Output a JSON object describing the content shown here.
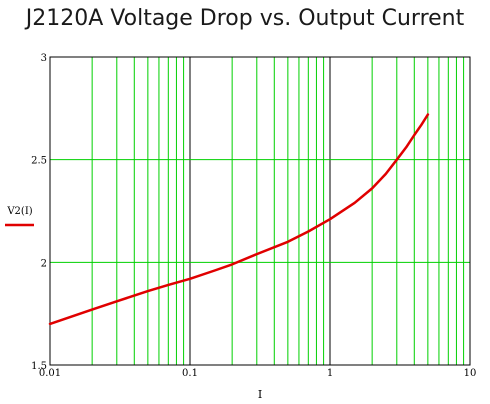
{
  "chart_data": {
    "type": "line",
    "title": "J2120A Voltage Drop vs. Output Current",
    "xlabel": "I",
    "ylabel": "V2(I)",
    "xscale": "log",
    "xlim": [
      0.01,
      10
    ],
    "ylim": [
      1.5,
      3
    ],
    "xticks": [
      "0.01",
      "0.1",
      "1",
      "10"
    ],
    "yticks": [
      "1.5",
      "2",
      "2.5",
      "3"
    ],
    "grid": true,
    "grid_color": "#00d000",
    "major_grid_color": "#000000",
    "legend": {
      "placement": "left",
      "label": "V2(I)"
    },
    "series": [
      {
        "name": "V2(I)",
        "color": "#e00000",
        "x": [
          0.01,
          0.02,
          0.03,
          0.05,
          0.07,
          0.1,
          0.15,
          0.2,
          0.3,
          0.5,
          0.7,
          1.0,
          1.5,
          2.0,
          2.5,
          3.0,
          3.5,
          4.0,
          4.5,
          5.0
        ],
        "y": [
          1.7,
          1.77,
          1.81,
          1.86,
          1.89,
          1.92,
          1.96,
          1.99,
          2.04,
          2.1,
          2.15,
          2.21,
          2.29,
          2.36,
          2.43,
          2.5,
          2.56,
          2.62,
          2.67,
          2.72
        ]
      }
    ]
  }
}
